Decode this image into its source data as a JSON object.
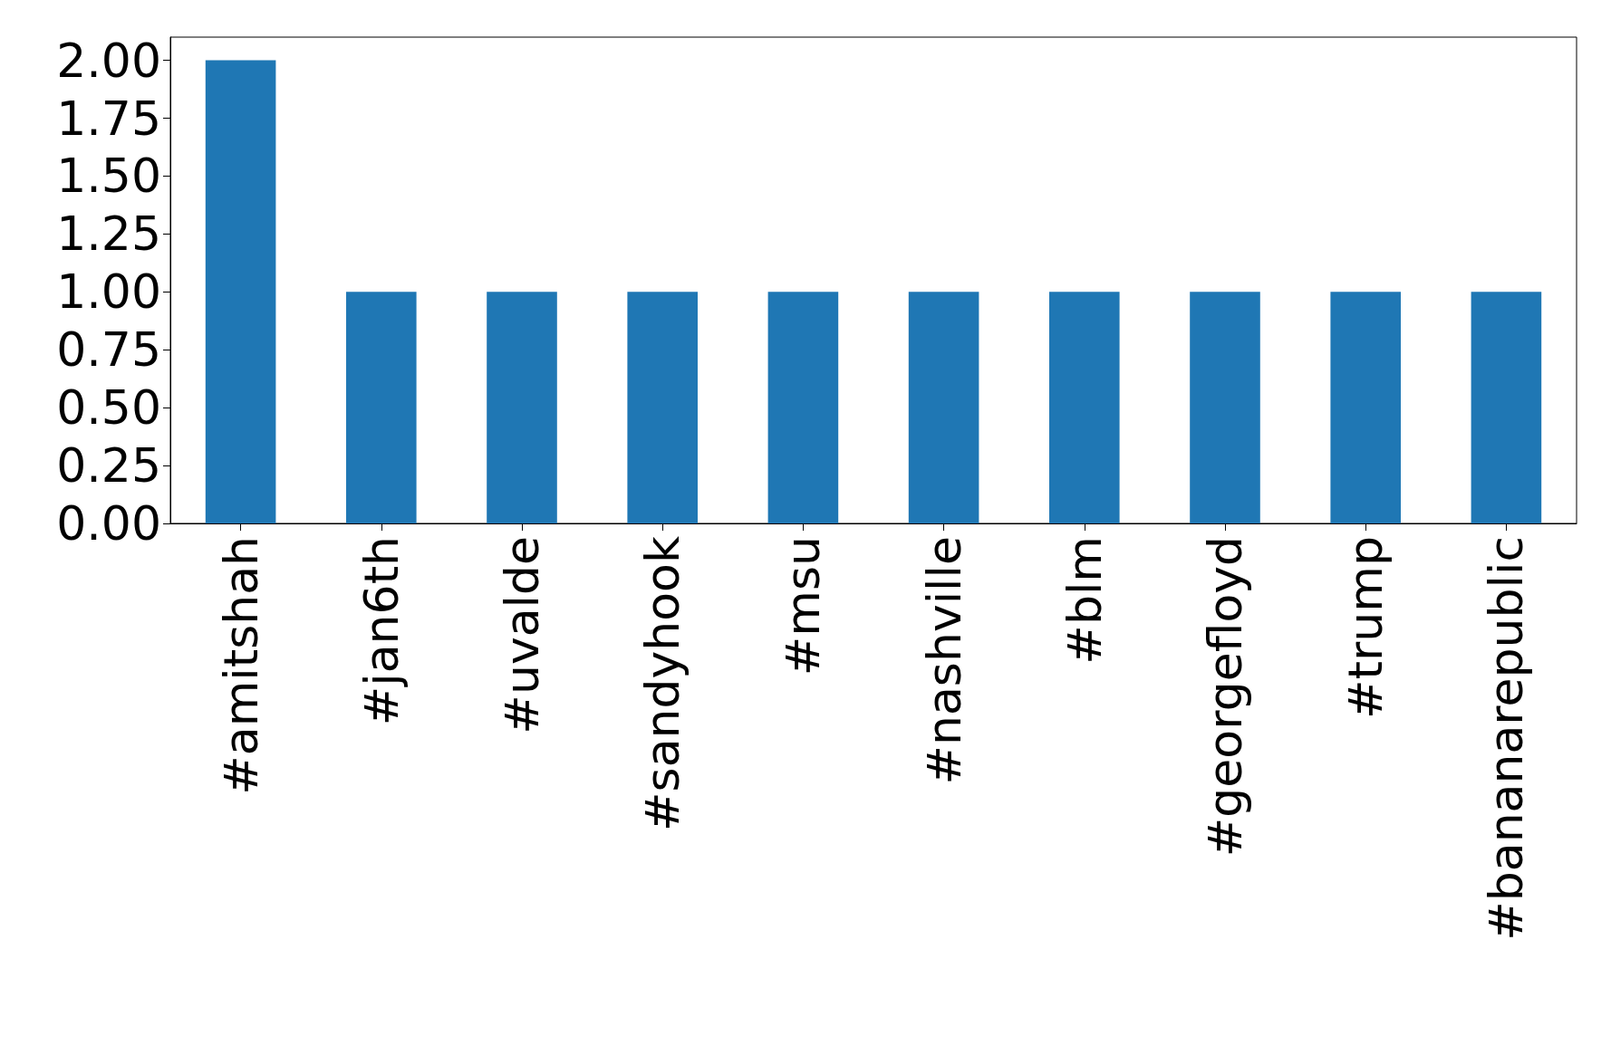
{
  "chart_data": {
    "type": "bar",
    "categories": [
      "#amitshah",
      "#jan6th",
      "#uvalde",
      "#sandyhook",
      "#msu",
      "#nashville",
      "#blm",
      "#georgefloyd",
      "#trump",
      "#bananarepublic"
    ],
    "values": [
      2,
      1,
      1,
      1,
      1,
      1,
      1,
      1,
      1,
      1
    ],
    "color": "#1f77b4",
    "ylim": [
      0,
      2.1
    ],
    "yticks": [
      {
        "value": 0,
        "label": "0.00"
      },
      {
        "value": 0.25,
        "label": "0.25"
      },
      {
        "value": 0.5,
        "label": "0.50"
      },
      {
        "value": 0.75,
        "label": "0.75"
      },
      {
        "value": 1,
        "label": "1.00"
      },
      {
        "value": 1.25,
        "label": "1.25"
      },
      {
        "value": 1.5,
        "label": "1.50"
      },
      {
        "value": 1.75,
        "label": "1.75"
      },
      {
        "value": 2,
        "label": "2.00"
      }
    ],
    "grid": false
  }
}
